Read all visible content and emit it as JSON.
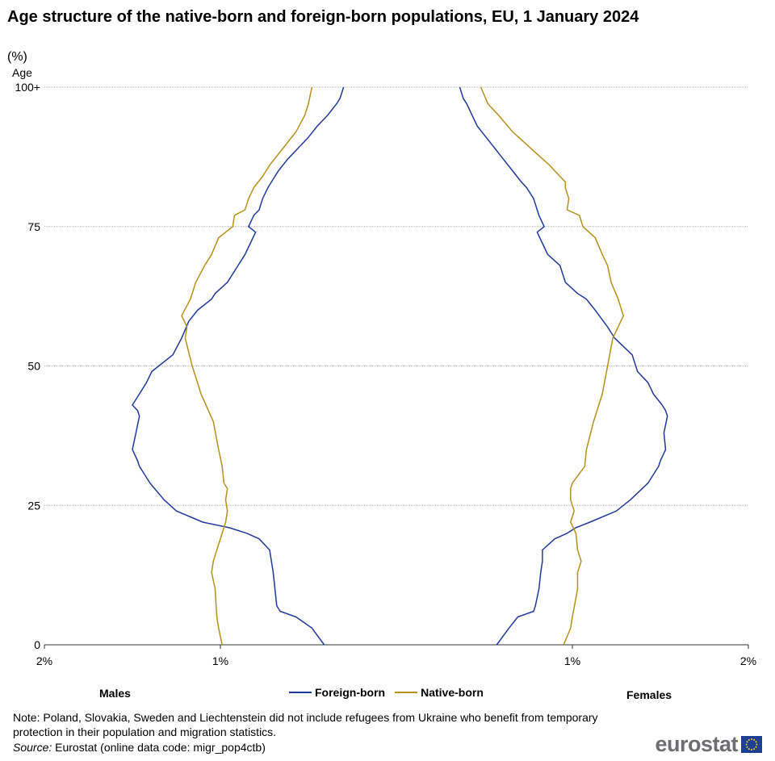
{
  "title": "Age structure of the native-born and foreign-born populations, EU, 1 January 2024",
  "unit": "(%)",
  "logo_text": "eurostat",
  "note": "Note: Poland, Slovakia, Sweden and Liechtenstein did not include refugees from Ukraine who benefit from temporary protection in their population and migration statistics.",
  "source": {
    "label": "Source:",
    "text": "Eurostat (online data code: migr_pop4ctb)"
  },
  "chart_data": {
    "type": "line",
    "subtype": "population pyramid",
    "title": "Age structure of the native-born and foreign-born populations, EU, 1 January 2024",
    "ylabel": "Age",
    "y_ticks": [
      "0",
      "25",
      "50",
      "75",
      "100+"
    ],
    "x_ticks": [
      "2%",
      "1%",
      "1%",
      "2%"
    ],
    "xlim": [
      -2,
      2
    ],
    "ylim": [
      0,
      100
    ],
    "grid": true,
    "legend_position": "bottom",
    "side_labels": {
      "left": "Males",
      "right": "Females"
    },
    "colors": {
      "Foreign-born": "#1f3a9e",
      "Native-born": "#b8901a"
    },
    "series": [
      {
        "name": "Foreign-born",
        "males": {
          "ages": [
            0,
            3,
            5,
            6,
            7,
            10,
            13,
            17,
            19,
            20,
            21,
            22,
            24,
            26,
            29,
            32,
            33,
            35,
            38,
            41,
            42,
            43,
            45,
            47,
            49,
            52,
            55,
            58,
            60,
            62,
            63,
            65,
            68,
            70,
            72,
            74,
            75,
            77,
            78,
            80,
            82,
            83,
            85,
            87,
            89,
            91,
            93,
            95,
            97,
            98,
            100
          ],
          "values": [
            0.41,
            0.48,
            0.57,
            0.66,
            0.68,
            0.69,
            0.7,
            0.72,
            0.78,
            0.85,
            0.95,
            1.1,
            1.25,
            1.32,
            1.4,
            1.46,
            1.47,
            1.5,
            1.48,
            1.46,
            1.47,
            1.5,
            1.46,
            1.42,
            1.39,
            1.27,
            1.22,
            1.18,
            1.13,
            1.05,
            1.03,
            0.96,
            0.9,
            0.86,
            0.83,
            0.8,
            0.84,
            0.81,
            0.78,
            0.76,
            0.73,
            0.71,
            0.67,
            0.62,
            0.56,
            0.5,
            0.45,
            0.39,
            0.34,
            0.32,
            0.3
          ]
        },
        "females": {
          "ages": [
            0,
            3,
            5,
            6,
            7,
            10,
            13,
            15,
            17,
            19,
            20,
            21,
            22,
            24,
            26,
            29,
            32,
            33,
            35,
            38,
            41,
            42,
            43,
            45,
            47,
            49,
            52,
            55,
            57,
            60,
            62,
            63,
            65,
            68,
            70,
            72,
            74,
            75,
            77,
            78,
            80,
            82,
            83,
            85,
            87,
            89,
            91,
            93,
            95,
            97,
            98,
            100
          ],
          "values": [
            0.57,
            0.64,
            0.69,
            0.78,
            0.79,
            0.81,
            0.82,
            0.83,
            0.83,
            0.9,
            0.97,
            1.02,
            1.1,
            1.25,
            1.33,
            1.43,
            1.49,
            1.5,
            1.53,
            1.52,
            1.54,
            1.53,
            1.51,
            1.46,
            1.43,
            1.37,
            1.34,
            1.24,
            1.2,
            1.13,
            1.08,
            1.03,
            0.96,
            0.93,
            0.86,
            0.83,
            0.8,
            0.84,
            0.81,
            0.8,
            0.78,
            0.74,
            0.71,
            0.66,
            0.61,
            0.56,
            0.51,
            0.46,
            0.43,
            0.4,
            0.38,
            0.36
          ]
        }
      },
      {
        "name": "Native-born",
        "males": {
          "ages": [
            0,
            3,
            5,
            10,
            13,
            15,
            17,
            20,
            22,
            24,
            26,
            28,
            29,
            32,
            35,
            40,
            45,
            50,
            55,
            57,
            59,
            62,
            65,
            68,
            70,
            73,
            75,
            77,
            78,
            80,
            82,
            84,
            86,
            88,
            90,
            92,
            95,
            97,
            100
          ],
          "values": [
            0.99,
            1.01,
            1.02,
            1.03,
            1.05,
            1.04,
            1.02,
            0.99,
            0.97,
            0.96,
            0.97,
            0.96,
            0.98,
            0.99,
            1.01,
            1.04,
            1.11,
            1.16,
            1.2,
            1.19,
            1.22,
            1.17,
            1.14,
            1.09,
            1.05,
            1.01,
            0.93,
            0.92,
            0.86,
            0.84,
            0.81,
            0.76,
            0.72,
            0.67,
            0.62,
            0.57,
            0.52,
            0.5,
            0.48
          ]
        },
        "females": {
          "ages": [
            0,
            3,
            5,
            10,
            13,
            15,
            17,
            20,
            22,
            24,
            26,
            28,
            29,
            32,
            35,
            40,
            45,
            50,
            55,
            57,
            59,
            62,
            65,
            68,
            70,
            73,
            75,
            77,
            78,
            80,
            82,
            83,
            84,
            86,
            88,
            90,
            92,
            95,
            97,
            100
          ],
          "values": [
            0.95,
            0.99,
            1.0,
            1.03,
            1.03,
            1.05,
            1.03,
            1.02,
            0.99,
            1.01,
            0.99,
            0.99,
            1.0,
            1.07,
            1.08,
            1.12,
            1.17,
            1.2,
            1.23,
            1.26,
            1.29,
            1.26,
            1.22,
            1.2,
            1.17,
            1.13,
            1.06,
            1.04,
            0.97,
            0.98,
            0.96,
            0.96,
            0.93,
            0.87,
            0.8,
            0.73,
            0.66,
            0.58,
            0.52,
            0.48
          ]
        }
      }
    ]
  }
}
